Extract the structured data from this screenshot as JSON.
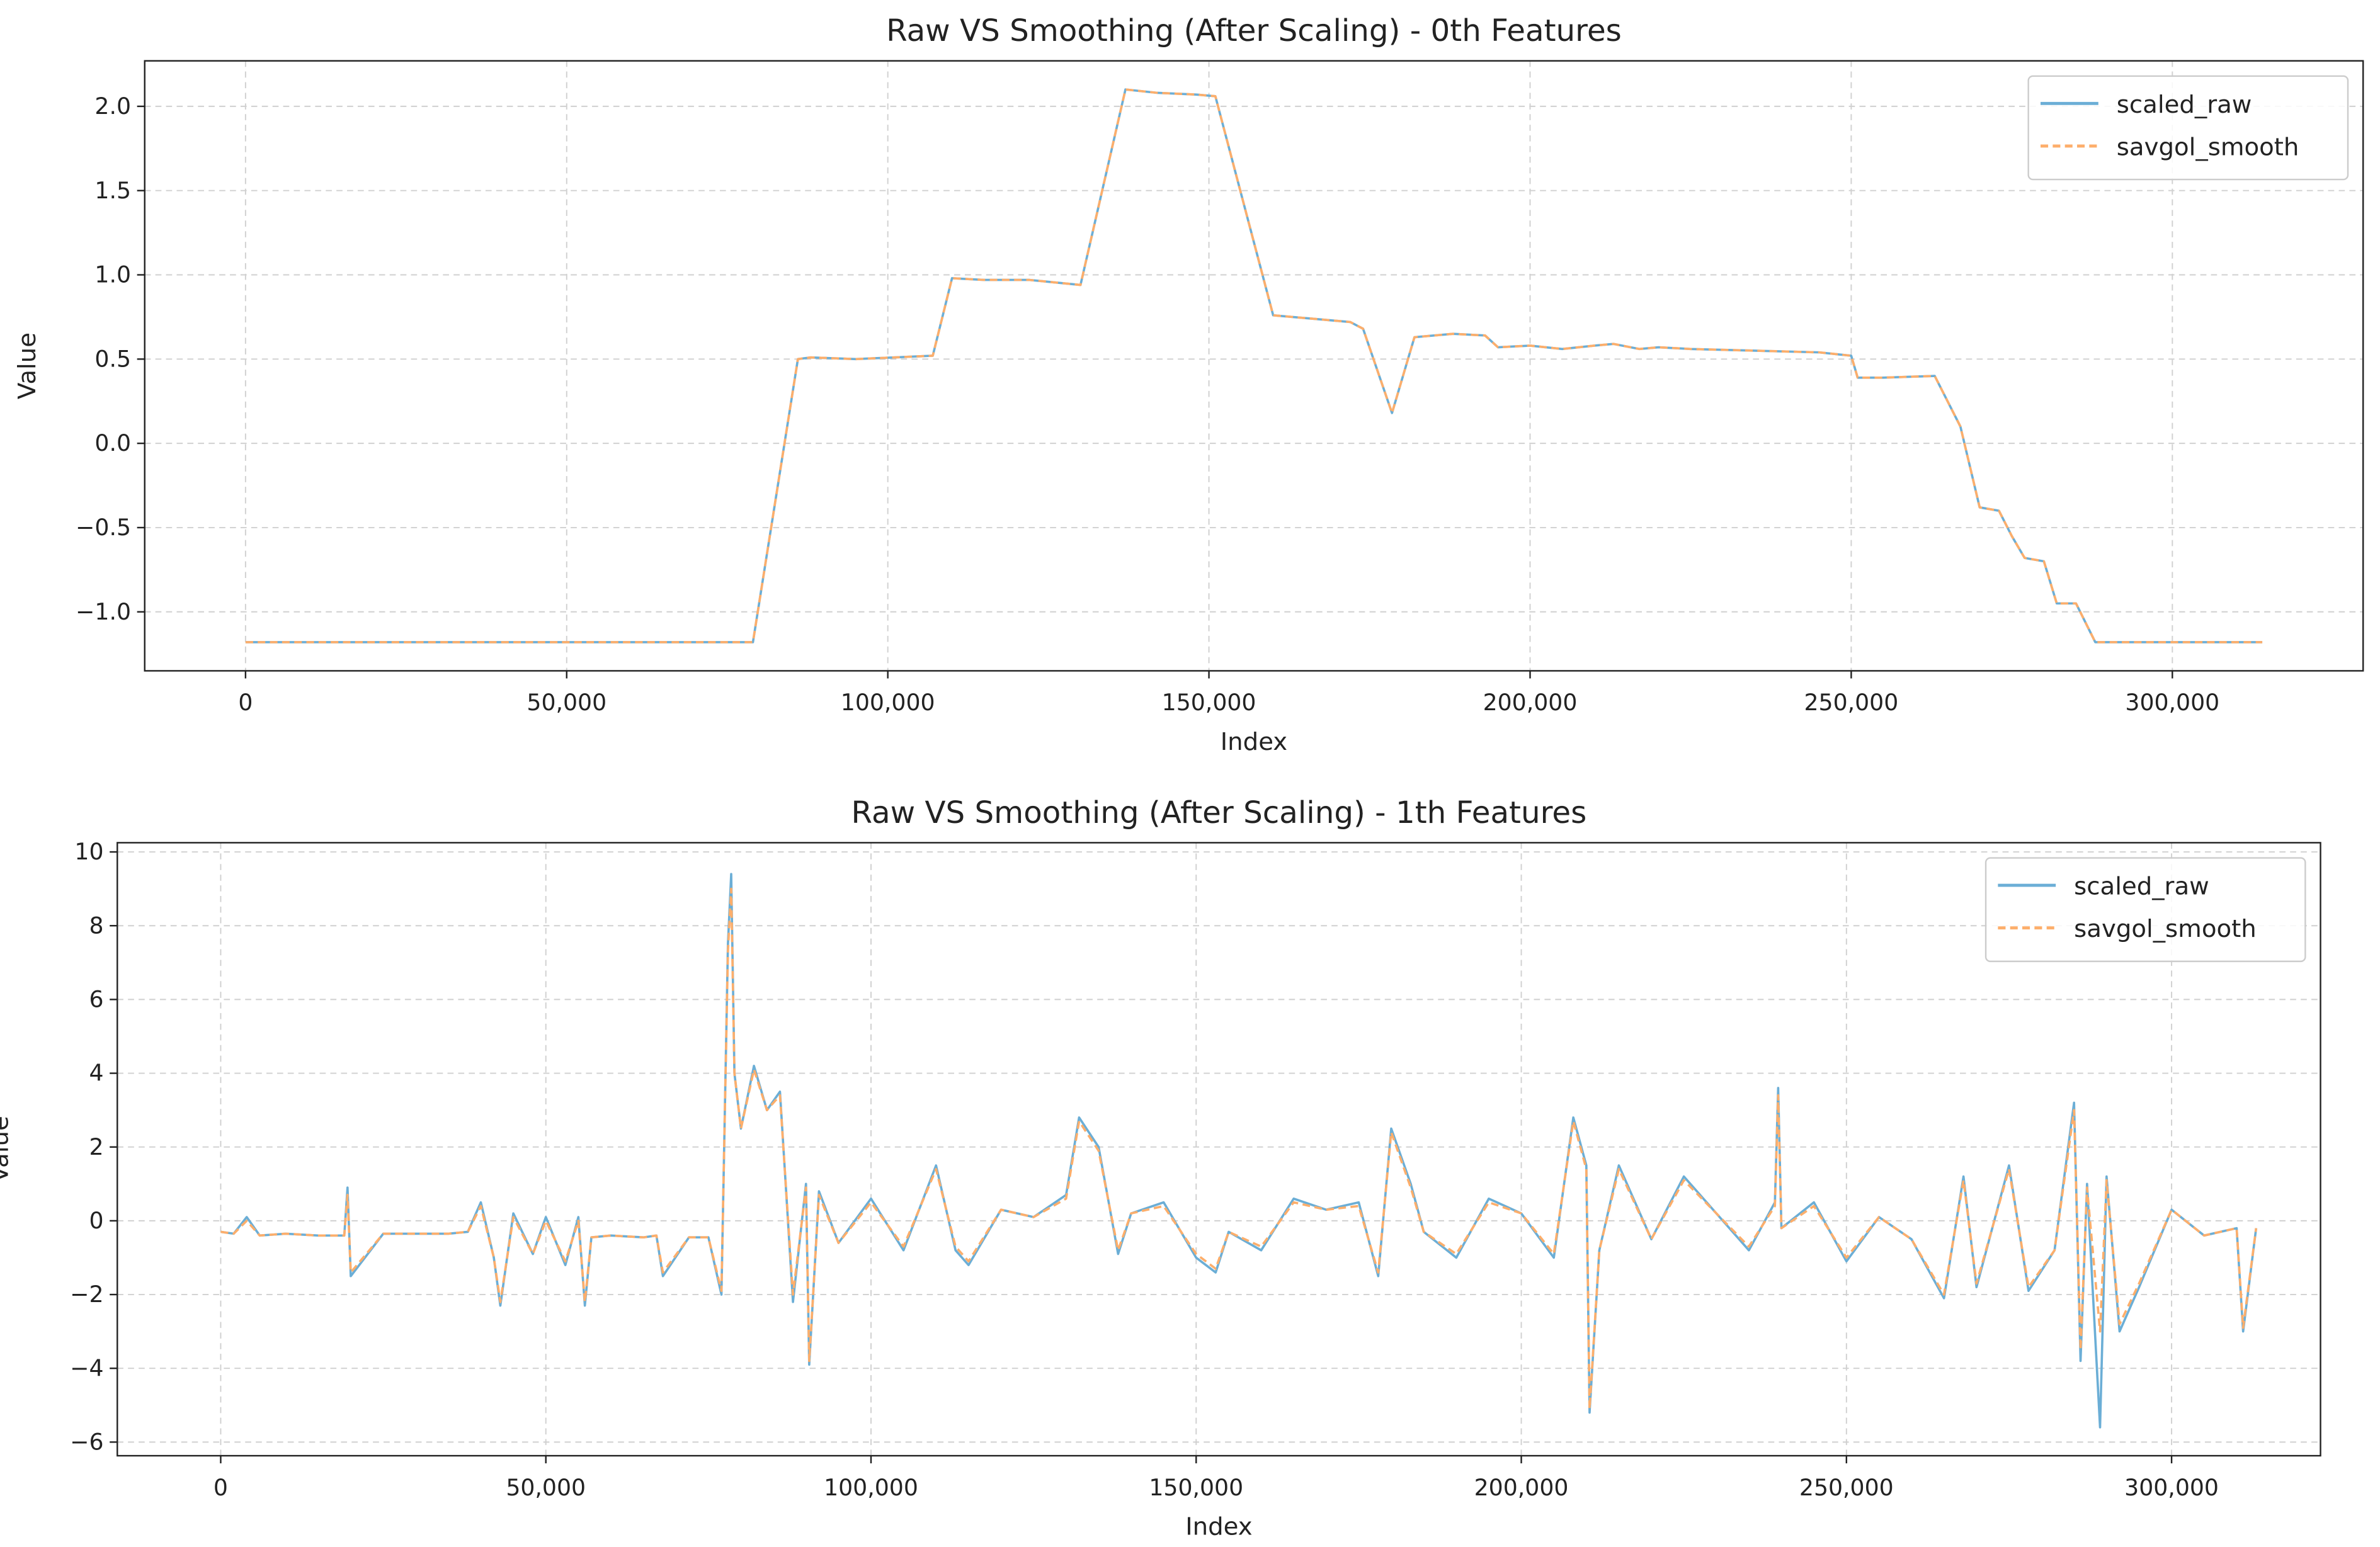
{
  "chart_data": [
    {
      "type": "line",
      "title": "Raw VS Smoothing (After Scaling) - 0th Features",
      "xlabel": "Index",
      "ylabel": "Value",
      "grid": true,
      "legend": "upper right",
      "xlim": [
        -15700,
        329700
      ],
      "ylim": [
        -1.35,
        2.27
      ],
      "xticks": [
        0,
        {
          "value": 50000,
          "label": "50,000"
        },
        {
          "value": 100000,
          "label": "100,000"
        },
        {
          "value": 150000,
          "label": "150,000"
        },
        {
          "value": 200000,
          "label": "200,000"
        },
        {
          "value": 250000,
          "label": "250,000"
        },
        {
          "value": 300000,
          "label": "300,000"
        }
      ],
      "yticks": [
        {
          "value": -1,
          "label": "−1.0"
        },
        {
          "value": -0.5,
          "label": "−0.5"
        },
        {
          "value": 0,
          "label": "0.0"
        },
        0.5,
        {
          "value": 1,
          "label": "1.0"
        },
        1.5,
        {
          "value": 2,
          "label": "2.0"
        }
      ],
      "x": [
        0,
        79000,
        86000,
        88000,
        95000,
        107000,
        110000,
        115000,
        122000,
        130000,
        137000,
        142000,
        148000,
        151000,
        160000,
        166000,
        172000,
        174000,
        178500,
        182000,
        188000,
        193000,
        195000,
        200000,
        205000,
        210000,
        213000,
        217000,
        220000,
        225000,
        235000,
        245000,
        250000,
        251000,
        255000,
        263000,
        267000,
        270000,
        273000,
        275000,
        277000,
        280000,
        282000,
        285000,
        288000,
        300000,
        314000
      ],
      "series": [
        {
          "name": "scaled_raw",
          "color": "#6baed6",
          "dash": false,
          "values": [
            -1.18,
            -1.18,
            0.5,
            0.51,
            0.5,
            0.52,
            0.98,
            0.97,
            0.97,
            0.94,
            2.1,
            2.08,
            2.07,
            2.06,
            0.76,
            0.74,
            0.72,
            0.68,
            0.18,
            0.63,
            0.65,
            0.64,
            0.57,
            0.58,
            0.56,
            0.58,
            0.59,
            0.56,
            0.57,
            0.56,
            0.55,
            0.54,
            0.52,
            0.39,
            0.39,
            0.4,
            0.1,
            -0.38,
            -0.4,
            -0.55,
            -0.68,
            -0.7,
            -0.95,
            -0.95,
            -1.18,
            -1.18,
            -1.18
          ]
        },
        {
          "name": "savgol_smooth",
          "color": "#fdae6b",
          "dash": true,
          "values": [
            -1.18,
            -1.18,
            0.5,
            0.51,
            0.5,
            0.52,
            0.98,
            0.97,
            0.97,
            0.94,
            2.1,
            2.08,
            2.07,
            2.06,
            0.76,
            0.74,
            0.72,
            0.68,
            0.18,
            0.63,
            0.65,
            0.64,
            0.57,
            0.58,
            0.56,
            0.58,
            0.59,
            0.56,
            0.57,
            0.56,
            0.55,
            0.54,
            0.52,
            0.39,
            0.39,
            0.4,
            0.1,
            -0.38,
            -0.4,
            -0.55,
            -0.68,
            -0.7,
            -0.95,
            -0.95,
            -1.18,
            -1.18,
            -1.18
          ]
        }
      ]
    },
    {
      "type": "line",
      "title": "Raw VS Smoothing (After Scaling) - 1th Features",
      "xlabel": "Index",
      "ylabel": "Value",
      "grid": true,
      "legend": "upper right",
      "xlim": [
        -15900,
        322900
      ],
      "ylim": [
        -6.37,
        10.25
      ],
      "xticks": [
        0,
        {
          "value": 50000,
          "label": "50,000"
        },
        {
          "value": 100000,
          "label": "100,000"
        },
        {
          "value": 150000,
          "label": "150,000"
        },
        {
          "value": 200000,
          "label": "200,000"
        },
        {
          "value": 250000,
          "label": "250,000"
        },
        {
          "value": 300000,
          "label": "300,000"
        }
      ],
      "yticks": [
        {
          "value": -6,
          "label": "−6"
        },
        {
          "value": -4,
          "label": "−4"
        },
        {
          "value": -2,
          "label": "−2"
        },
        0,
        2,
        4,
        6,
        8,
        10
      ],
      "x": [
        0,
        2000,
        4000,
        6000,
        10000,
        15000,
        19000,
        19500,
        20000,
        25000,
        30000,
        35000,
        38000,
        40000,
        42000,
        43000,
        45000,
        48000,
        50000,
        53000,
        55000,
        56000,
        57000,
        60000,
        65000,
        67000,
        68000,
        72000,
        75000,
        77000,
        78000,
        78500,
        79000,
        80000,
        82000,
        84000,
        86000,
        88000,
        90000,
        90500,
        92000,
        95000,
        100000,
        105000,
        110000,
        113000,
        115000,
        120000,
        125000,
        130000,
        132000,
        135000,
        138000,
        140000,
        145000,
        150000,
        153000,
        155000,
        160000,
        165000,
        170000,
        175000,
        178000,
        180000,
        183000,
        185000,
        190000,
        195000,
        200000,
        205000,
        208000,
        210000,
        210500,
        212000,
        215000,
        220000,
        225000,
        230000,
        235000,
        239000,
        239500,
        240000,
        245000,
        250000,
        255000,
        260000,
        265000,
        268000,
        270000,
        275000,
        278000,
        282000,
        285000,
        286000,
        287000,
        289000,
        290000,
        292000,
        295000,
        300000,
        305000,
        310000,
        311000,
        313000
      ],
      "series": [
        {
          "name": "scaled_raw",
          "color": "#6baed6",
          "dash": false,
          "values": [
            -0.3,
            -0.35,
            0.1,
            -0.4,
            -0.35,
            -0.4,
            -0.4,
            0.9,
            -1.5,
            -0.35,
            -0.35,
            -0.35,
            -0.3,
            0.5,
            -1.0,
            -2.3,
            0.2,
            -0.9,
            0.1,
            -1.2,
            0.1,
            -2.3,
            -0.45,
            -0.4,
            -0.45,
            -0.4,
            -1.5,
            -0.45,
            -0.45,
            -2.0,
            7.5,
            9.4,
            4.0,
            2.5,
            4.2,
            3.0,
            3.5,
            -2.2,
            1.0,
            -3.9,
            0.8,
            -0.6,
            0.6,
            -0.8,
            1.5,
            -0.8,
            -1.2,
            0.3,
            0.1,
            0.7,
            2.8,
            2.0,
            -0.9,
            0.2,
            0.5,
            -1.0,
            -1.4,
            -0.3,
            -0.8,
            0.6,
            0.3,
            0.5,
            -1.5,
            2.5,
            1.0,
            -0.3,
            -1.0,
            0.6,
            0.2,
            -1.0,
            2.8,
            1.5,
            -5.2,
            -0.8,
            1.5,
            -0.5,
            1.2,
            0.2,
            -0.8,
            0.5,
            3.6,
            -0.2,
            0.5,
            -1.1,
            0.1,
            -0.5,
            -2.1,
            1.2,
            -1.8,
            1.5,
            -1.9,
            -0.8,
            3.2,
            -3.8,
            1.0,
            -5.6,
            1.2,
            -3.0,
            -1.8,
            0.3,
            -0.4,
            -0.2,
            -3.0,
            -0.2
          ]
        },
        {
          "name": "savgol_smooth",
          "color": "#fdae6b",
          "dash": true,
          "values": [
            -0.3,
            -0.35,
            0.0,
            -0.4,
            -0.35,
            -0.4,
            -0.4,
            0.7,
            -1.4,
            -0.35,
            -0.35,
            -0.35,
            -0.3,
            0.4,
            -1.0,
            -2.2,
            0.1,
            -0.9,
            0.0,
            -1.1,
            0.0,
            -2.2,
            -0.45,
            -0.4,
            -0.45,
            -0.4,
            -1.4,
            -0.45,
            -0.45,
            -1.9,
            7.3,
            9.0,
            4.0,
            2.5,
            4.1,
            3.0,
            3.4,
            -2.0,
            0.9,
            -3.8,
            0.7,
            -0.6,
            0.5,
            -0.7,
            1.4,
            -0.7,
            -1.1,
            0.3,
            0.1,
            0.6,
            2.7,
            1.9,
            -0.8,
            0.2,
            0.4,
            -0.9,
            -1.3,
            -0.3,
            -0.7,
            0.5,
            0.3,
            0.4,
            -1.4,
            2.4,
            0.9,
            -0.3,
            -0.9,
            0.5,
            0.2,
            -0.9,
            2.7,
            1.4,
            -5.1,
            -0.8,
            1.4,
            -0.5,
            1.1,
            0.2,
            -0.7,
            0.4,
            3.4,
            -0.2,
            0.4,
            -1.0,
            0.1,
            -0.5,
            -2.0,
            1.1,
            -1.7,
            1.4,
            -1.8,
            -0.8,
            3.0,
            -3.5,
            0.9,
            -3.0,
            1.1,
            -2.8,
            -1.7,
            0.3,
            -0.4,
            -0.2,
            -2.9,
            -0.2
          ]
        }
      ]
    }
  ]
}
